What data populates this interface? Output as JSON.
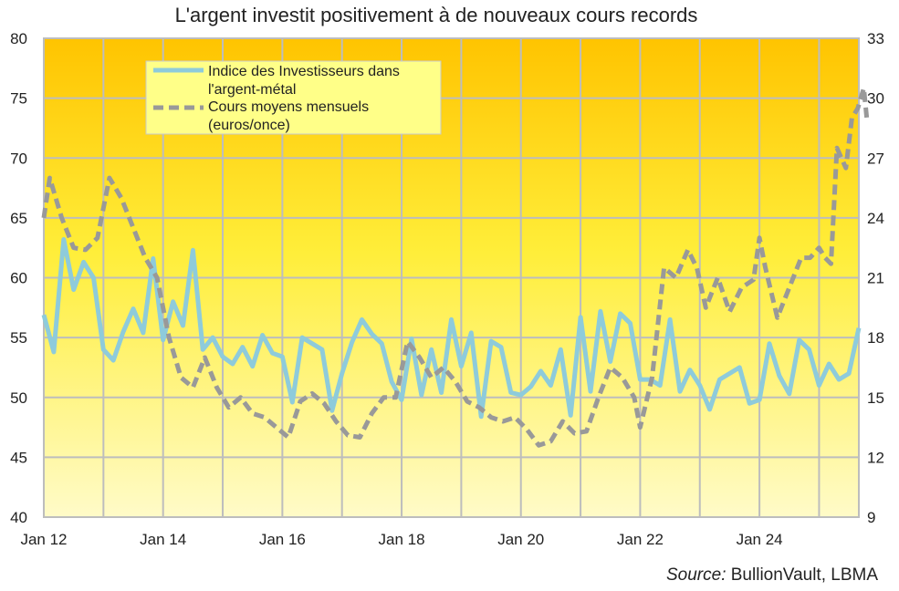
{
  "chart_data": {
    "type": "line",
    "title": "L'argent investit positivement à de nouveaux cours records",
    "source_label": "Source:",
    "source_text": " BullionVault, LBMA",
    "x_tick_labels": [
      "Jan 12",
      "Jan 14",
      "Jan 16",
      "Jan 18",
      "Jan 20",
      "Jan 22",
      "Jan 24"
    ],
    "x_tick_years": [
      2012,
      2014,
      2016,
      2018,
      2020,
      2022,
      2024
    ],
    "x_range": [
      "2012-01",
      "2025-09"
    ],
    "y_left": {
      "min": 40,
      "max": 80,
      "step": 5,
      "labels": [
        "40",
        "45",
        "50",
        "55",
        "60",
        "65",
        "70",
        "75",
        "80"
      ]
    },
    "y_right": {
      "min": 9,
      "max": 33,
      "step": 3,
      "labels": [
        "9",
        "12",
        "15",
        "18",
        "21",
        "24",
        "27",
        "30",
        "33"
      ]
    },
    "grid": true,
    "legend_position": "top-left",
    "series": [
      {
        "name_lines": [
          "Indice des Investisseurs dans",
          "l'argent-métal"
        ],
        "axis": "left",
        "style": "solid",
        "color": "#8ECBDB",
        "points": [
          [
            "2012-01",
            56.9
          ],
          [
            "2012-03",
            53.8
          ],
          [
            "2012-05",
            63.2
          ],
          [
            "2012-07",
            59
          ],
          [
            "2012-09",
            61.3
          ],
          [
            "2012-11",
            60
          ],
          [
            "2013-01",
            54
          ],
          [
            "2013-03",
            53.1
          ],
          [
            "2013-05",
            55.5
          ],
          [
            "2013-07",
            57.4
          ],
          [
            "2013-09",
            55.4
          ],
          [
            "2013-11",
            61.6
          ],
          [
            "2014-01",
            54.8
          ],
          [
            "2014-03",
            58
          ],
          [
            "2014-05",
            56
          ],
          [
            "2014-07",
            62.3
          ],
          [
            "2014-09",
            54
          ],
          [
            "2014-11",
            55
          ],
          [
            "2015-01",
            53.4
          ],
          [
            "2015-03",
            52.8
          ],
          [
            "2015-05",
            54.2
          ],
          [
            "2015-07",
            52.6
          ],
          [
            "2015-09",
            55.2
          ],
          [
            "2015-11",
            53.7
          ],
          [
            "2016-01",
            53.4
          ],
          [
            "2016-03",
            49.6
          ],
          [
            "2016-05",
            55
          ],
          [
            "2016-07",
            54.5
          ],
          [
            "2016-09",
            54
          ],
          [
            "2016-11",
            48.9
          ],
          [
            "2017-01",
            52
          ],
          [
            "2017-03",
            54.6
          ],
          [
            "2017-05",
            56.5
          ],
          [
            "2017-07",
            55.3
          ],
          [
            "2017-09",
            54.5
          ],
          [
            "2017-11",
            51.3
          ],
          [
            "2018-01",
            49.8
          ],
          [
            "2018-03",
            54.9
          ],
          [
            "2018-05",
            50.2
          ],
          [
            "2018-07",
            54
          ],
          [
            "2018-09",
            50.4
          ],
          [
            "2018-11",
            56.5
          ],
          [
            "2019-01",
            52.6
          ],
          [
            "2019-03",
            55.4
          ],
          [
            "2019-05",
            48.4
          ],
          [
            "2019-07",
            54.7
          ],
          [
            "2019-09",
            54.2
          ],
          [
            "2019-11",
            50.4
          ],
          [
            "2020-01",
            50.2
          ],
          [
            "2020-03",
            50.9
          ],
          [
            "2020-05",
            52.2
          ],
          [
            "2020-07",
            51
          ],
          [
            "2020-09",
            54
          ],
          [
            "2020-11",
            48.5
          ],
          [
            "2021-01",
            56.7
          ],
          [
            "2021-03",
            50.5
          ],
          [
            "2021-05",
            57.2
          ],
          [
            "2021-07",
            53
          ],
          [
            "2021-09",
            57
          ],
          [
            "2021-11",
            56.2
          ],
          [
            "2022-01",
            51.5
          ],
          [
            "2022-03",
            51.5
          ],
          [
            "2022-05",
            51
          ],
          [
            "2022-07",
            56.5
          ],
          [
            "2022-09",
            50.5
          ],
          [
            "2022-11",
            52.3
          ],
          [
            "2023-01",
            51
          ],
          [
            "2023-03",
            49
          ],
          [
            "2023-05",
            51.5
          ],
          [
            "2023-07",
            52
          ],
          [
            "2023-09",
            52.5
          ],
          [
            "2023-11",
            49.5
          ],
          [
            "2024-01",
            49.8
          ],
          [
            "2024-03",
            54.5
          ],
          [
            "2024-05",
            51.8
          ],
          [
            "2024-07",
            50.3
          ],
          [
            "2024-09",
            54.8
          ],
          [
            "2024-11",
            54
          ],
          [
            "2025-01",
            51
          ],
          [
            "2025-03",
            52.8
          ],
          [
            "2025-05",
            51.5
          ],
          [
            "2025-07",
            52
          ],
          [
            "2025-09",
            55.8
          ]
        ]
      },
      {
        "name_lines": [
          "Cours moyens mensuels",
          "(euros/once)"
        ],
        "axis": "right",
        "style": "dashed",
        "color": "#999999",
        "points": []
      }
    ]
  }
}
